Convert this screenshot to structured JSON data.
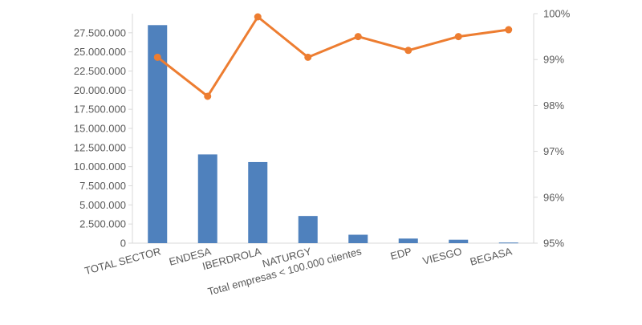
{
  "chart_data": {
    "type": "bar+line",
    "categories": [
      "TOTAL SECTOR",
      "ENDESA",
      "IBERDROLA",
      "NATURGY",
      "Total empresas < 100.000 clientes",
      "EDP",
      "VIESGO",
      "BEGASA"
    ],
    "series": [
      {
        "type": "bar",
        "axis": "left",
        "color": "#4f81bd",
        "values": [
          28500000,
          11600000,
          10600000,
          3550000,
          1100000,
          600000,
          450000,
          80000
        ]
      },
      {
        "type": "line",
        "axis": "right",
        "color": "#ed7d31",
        "values": [
          99.05,
          98.2,
          99.93,
          99.05,
          99.5,
          99.2,
          99.5,
          99.65
        ]
      }
    ],
    "y_left": {
      "ylim": [
        0,
        30000000
      ],
      "ticks": [
        0,
        2500000,
        5000000,
        7500000,
        10000000,
        12500000,
        15000000,
        17500000,
        20000000,
        22500000,
        25000000,
        27500000
      ],
      "tick_labels": [
        "0",
        "2.500.000",
        "5.000.000",
        "7.500.000",
        "10.000.000",
        "12.500.000",
        "15.000.000",
        "17.500.000",
        "20.000.000",
        "22.500.000",
        "25.000.000",
        "27.500.000"
      ]
    },
    "y_right": {
      "ylim": [
        95,
        100
      ],
      "ticks": [
        95,
        96,
        97,
        98,
        99,
        100
      ],
      "tick_labels": [
        "95%",
        "96%",
        "97%",
        "98%",
        "99%",
        "100%"
      ]
    },
    "x_tick_labels": [
      "TOTAL SECTOR",
      "ENDESA",
      "IBERDROLA",
      "NATURGY",
      "Total empresas < 100.000 clientes",
      "EDP",
      "VIESGO",
      "BEGASA"
    ],
    "grid": false,
    "legend": "none"
  }
}
